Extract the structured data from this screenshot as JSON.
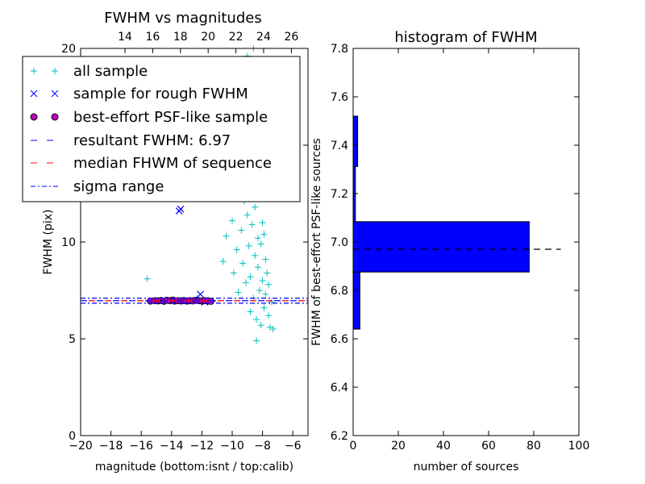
{
  "chart_data": [
    {
      "type": "scatter",
      "title": "FWHM vs magnitudes",
      "xlabel": "magnitude (bottom:isnt / top:calib)",
      "ylabel": "FWHM (pix)",
      "xlim": [
        -20,
        -5
      ],
      "ylim": [
        0,
        20
      ],
      "xticks": [
        "−20",
        "−18",
        "−16",
        "−14",
        "−12",
        "−10",
        "−8",
        "−6"
      ],
      "xtick_values": [
        -20,
        -18,
        -16,
        -14,
        -12,
        -10,
        -8,
        -6
      ],
      "yticks": [
        "0",
        "5",
        "10",
        "15",
        "20"
      ],
      "ytick_values": [
        0,
        5,
        10,
        15,
        20
      ],
      "top_xlim": [
        10.8,
        27.2
      ],
      "top_xticks": [
        "14",
        "16",
        "18",
        "20",
        "22",
        "24",
        "26"
      ],
      "top_xtick_values": [
        14,
        16,
        18,
        20,
        22,
        24,
        26
      ],
      "legend": {
        "placement": "top-left",
        "entries": [
          "all sample",
          "sample for rough FWHM",
          "best-effort PSF-like sample",
          "resultant FWHM: 6.97",
          "median FHWM of sequence",
          "sigma range"
        ]
      },
      "series": [
        {
          "name": "all sample",
          "marker": "+",
          "color": "#00bfbf",
          "points": [
            [
              -15.6,
              8.1
            ],
            [
              -12.3,
              7.1
            ],
            [
              -11.9,
              7.0
            ],
            [
              -11.6,
              6.9
            ],
            [
              -10.6,
              9.0
            ],
            [
              -10.4,
              10.3
            ],
            [
              -10.0,
              11.1
            ],
            [
              -10.2,
              12.3
            ],
            [
              -9.9,
              8.4
            ],
            [
              -9.7,
              9.6
            ],
            [
              -9.6,
              7.4
            ],
            [
              -9.4,
              10.6
            ],
            [
              -9.3,
              8.9
            ],
            [
              -9.2,
              12.1
            ],
            [
              -9.1,
              7.9
            ],
            [
              -9.0,
              11.4
            ],
            [
              -8.9,
              9.8
            ],
            [
              -8.9,
              13.7
            ],
            [
              -8.8,
              6.4
            ],
            [
              -8.8,
              8.2
            ],
            [
              -8.7,
              10.9
            ],
            [
              -8.6,
              12.6
            ],
            [
              -8.6,
              7.1
            ],
            [
              -8.5,
              9.3
            ],
            [
              -8.5,
              11.8
            ],
            [
              -8.4,
              13.2
            ],
            [
              -8.4,
              6.0
            ],
            [
              -8.3,
              8.7
            ],
            [
              -8.3,
              10.2
            ],
            [
              -8.2,
              12.4
            ],
            [
              -8.2,
              7.5
            ],
            [
              -8.1,
              9.9
            ],
            [
              -8.1,
              5.7
            ],
            [
              -8.0,
              11.0
            ],
            [
              -8.0,
              8.0
            ],
            [
              -7.9,
              6.6
            ],
            [
              -7.9,
              10.4
            ],
            [
              -7.8,
              7.3
            ],
            [
              -7.8,
              9.1
            ],
            [
              -7.7,
              8.4
            ],
            [
              -7.6,
              6.2
            ],
            [
              -7.6,
              7.8
            ],
            [
              -7.5,
              5.6
            ],
            [
              -7.4,
              6.9
            ],
            [
              -7.3,
              5.5
            ],
            [
              -8.4,
              4.9
            ],
            [
              -8.6,
              20.0
            ],
            [
              -9.0,
              19.6
            ],
            [
              -7.9,
              18.9
            ],
            [
              -8.3,
              16.9
            ],
            [
              -8.7,
              15.9
            ]
          ]
        },
        {
          "name": "sample for rough FWHM",
          "marker": "x",
          "color": "#0000ff",
          "points": [
            [
              -13.4,
              11.7
            ],
            [
              -13.5,
              11.6
            ],
            [
              -12.1,
              7.3
            ],
            [
              -14.2,
              7.0
            ],
            [
              -13.1,
              6.95
            ],
            [
              -11.8,
              6.9
            ]
          ]
        },
        {
          "name": "best-effort PSF-like sample",
          "marker": "o",
          "color": "#bf00bf",
          "points": [
            [
              -15.4,
              6.95
            ],
            [
              -15.1,
              6.97
            ],
            [
              -14.9,
              6.96
            ],
            [
              -14.7,
              6.98
            ],
            [
              -14.5,
              6.94
            ],
            [
              -14.3,
              6.99
            ],
            [
              -14.1,
              6.97
            ],
            [
              -13.9,
              7.0
            ],
            [
              -13.8,
              6.95
            ],
            [
              -13.6,
              6.97
            ],
            [
              -13.4,
              6.96
            ],
            [
              -13.2,
              6.98
            ],
            [
              -13.0,
              6.95
            ],
            [
              -12.8,
              6.97
            ],
            [
              -12.6,
              6.96
            ],
            [
              -12.4,
              6.99
            ],
            [
              -12.2,
              6.97
            ],
            [
              -12.0,
              6.95
            ],
            [
              -11.8,
              6.97
            ],
            [
              -11.6,
              6.96
            ],
            [
              -11.4,
              6.94
            ]
          ]
        },
        {
          "name": "resultant FWHM: 6.97",
          "line": "dashed",
          "color": "#0000ff",
          "y": 6.97
        },
        {
          "name": "median FHWM of sequence",
          "line": "dashed",
          "color": "#ff0000",
          "y": 6.97
        },
        {
          "name": "sigma range",
          "line": "dashdot",
          "color": "#0000ff",
          "y": [
            6.84,
            7.1
          ]
        }
      ]
    },
    {
      "type": "bar",
      "orientation": "horizontal",
      "title": "histogram of FWHM",
      "xlabel": "number of sources",
      "ylabel": "FWHM of best-effort PSF-like sources",
      "xlim": [
        0,
        100
      ],
      "ylim": [
        6.2,
        7.8
      ],
      "xticks": [
        "0",
        "20",
        "40",
        "60",
        "80",
        "100"
      ],
      "xtick_values": [
        0,
        20,
        40,
        60,
        80,
        100
      ],
      "yticks": [
        "6.2",
        "6.4",
        "6.6",
        "6.8",
        "7.0",
        "7.2",
        "7.4",
        "7.6",
        "7.8"
      ],
      "ytick_values": [
        6.2,
        6.4,
        6.6,
        6.8,
        7.0,
        7.2,
        7.4,
        7.6,
        7.8
      ],
      "bar_color": "#0000ff",
      "bins": [
        {
          "from": 6.64,
          "to": 6.876,
          "count": 3
        },
        {
          "from": 6.876,
          "to": 7.084,
          "count": 78
        },
        {
          "from": 7.084,
          "to": 7.312,
          "count": 1
        },
        {
          "from": 7.312,
          "to": 7.52,
          "count": 2
        }
      ],
      "reference_line": {
        "y": 6.97,
        "style": "dashed",
        "color": "#000000"
      }
    }
  ]
}
